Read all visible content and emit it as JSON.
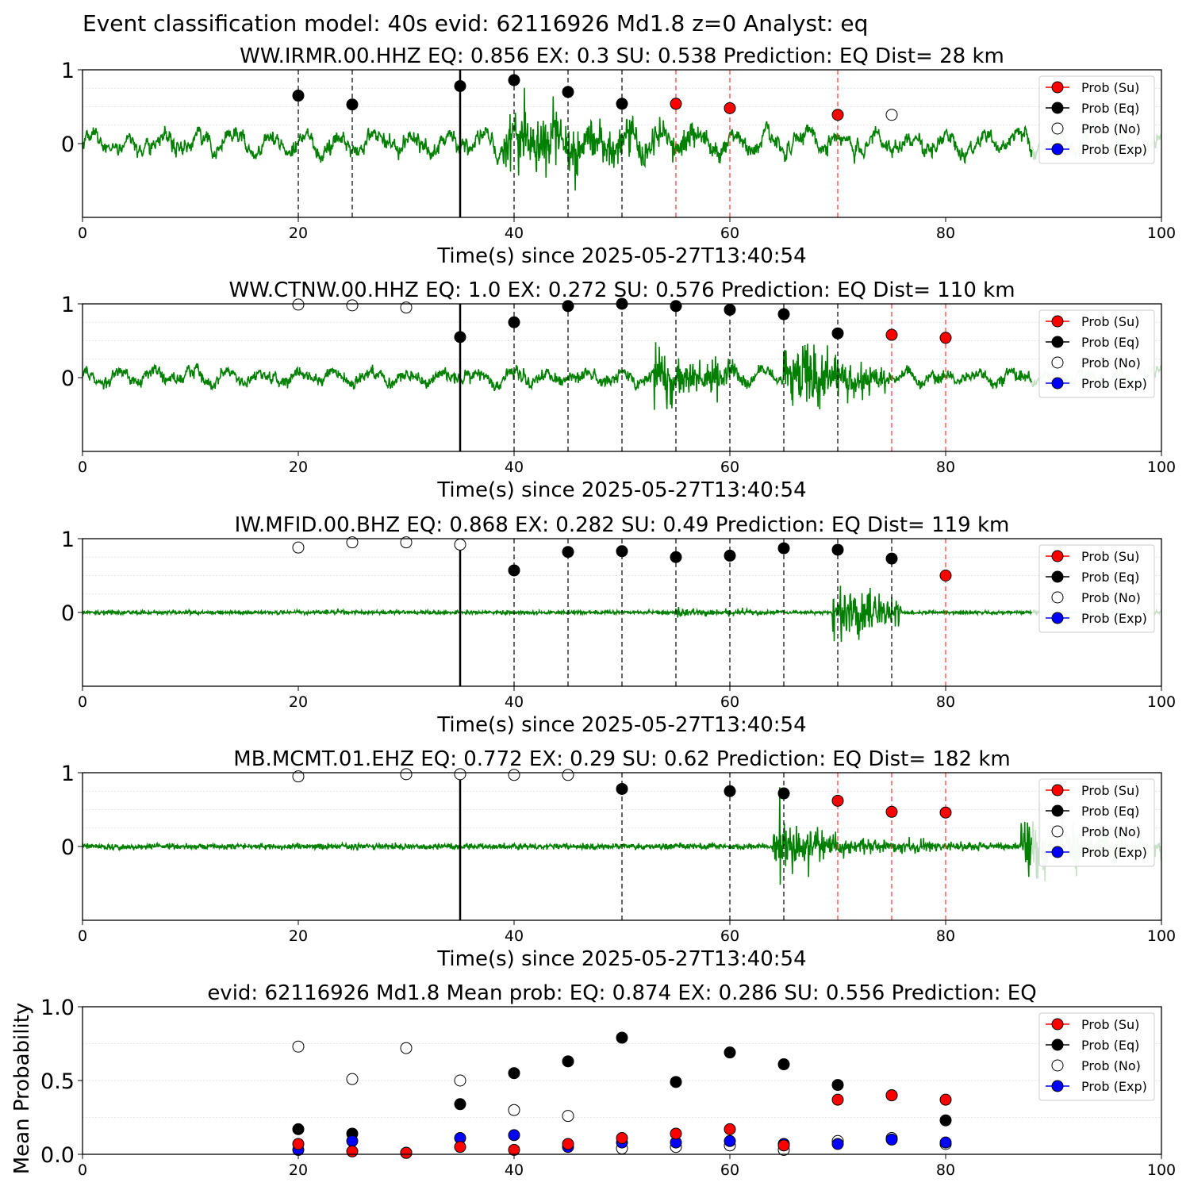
{
  "figure_title": "Event classification model: 40s evid: 62116926 Md1.8 z=0 Analyst: eq",
  "legend_labels": [
    "Prob (Su)",
    "Prob (Eq)",
    "Prob (No)",
    "Prob (Exp)"
  ],
  "colors": {
    "su": "#ff0000",
    "eq": "#000000",
    "no": "#ffffff",
    "exp": "#0000ff",
    "waveform": "#008000",
    "waveform_faded": "#c8e0c8",
    "marker_eq": "#000000",
    "marker_su": "#ff3333",
    "marker_no": "#555555"
  },
  "chart_data": [
    {
      "type": "line",
      "title": "WW.IRMR.00.HHZ   EQ: 0.856  EX: 0.3  SU: 0.538   Prediction: EQ    Dist= 28 km",
      "xlabel": "Time(s) since 2025-05-27T13:40:54",
      "ylabel": "",
      "xlim": [
        0,
        100
      ],
      "ylim": [
        -1,
        1
      ],
      "xticks": [
        "0",
        "20",
        "40",
        "60",
        "80",
        "100"
      ],
      "yticks": [
        "1",
        "0"
      ],
      "grid_y": [
        0.25,
        0.5,
        0.75
      ],
      "origin_time_line": 35,
      "window_markers": [
        {
          "x": 20,
          "kind": "eq"
        },
        {
          "x": 25,
          "kind": "eq"
        },
        {
          "x": 40,
          "kind": "eq"
        },
        {
          "x": 45,
          "kind": "eq"
        },
        {
          "x": 50,
          "kind": "eq"
        },
        {
          "x": 55,
          "kind": "su"
        },
        {
          "x": 60,
          "kind": "su"
        },
        {
          "x": 70,
          "kind": "su"
        }
      ],
      "points": [
        {
          "x": 20,
          "y": 0.65,
          "cls": "eq"
        },
        {
          "x": 25,
          "y": 0.53,
          "cls": "eq"
        },
        {
          "x": 35,
          "y": 0.78,
          "cls": "eq"
        },
        {
          "x": 40,
          "y": 0.86,
          "cls": "eq"
        },
        {
          "x": 45,
          "y": 0.7,
          "cls": "eq"
        },
        {
          "x": 50,
          "y": 0.54,
          "cls": "eq"
        },
        {
          "x": 55,
          "y": 0.54,
          "cls": "su"
        },
        {
          "x": 60,
          "y": 0.48,
          "cls": "su"
        },
        {
          "x": 70,
          "y": 0.39,
          "cls": "su"
        },
        {
          "x": 75,
          "y": 0.39,
          "cls": "no"
        }
      ],
      "waveform": {
        "noise": 0.13,
        "low_freq": 0.9,
        "bursts": [
          {
            "start": 39,
            "end": 55,
            "amp": 0.95
          },
          {
            "start": 55,
            "end": 68,
            "amp": 0.3
          }
        ],
        "fade_from": 88
      }
    },
    {
      "type": "line",
      "title": "WW.CTNW.00.HHZ   EQ: 1.0  EX: 0.272  SU: 0.576   Prediction: EQ    Dist= 110 km",
      "xlabel": "Time(s) since 2025-05-27T13:40:54",
      "ylabel": "",
      "xlim": [
        0,
        100
      ],
      "ylim": [
        -1,
        1
      ],
      "xticks": [
        "0",
        "20",
        "40",
        "60",
        "80",
        "100"
      ],
      "yticks": [
        "1",
        "0"
      ],
      "grid_y": [
        0.25,
        0.5,
        0.75
      ],
      "origin_time_line": 35,
      "window_markers": [
        {
          "x": 40,
          "kind": "eq"
        },
        {
          "x": 45,
          "kind": "eq"
        },
        {
          "x": 50,
          "kind": "eq"
        },
        {
          "x": 55,
          "kind": "eq"
        },
        {
          "x": 60,
          "kind": "eq"
        },
        {
          "x": 65,
          "kind": "eq"
        },
        {
          "x": 70,
          "kind": "eq"
        },
        {
          "x": 75,
          "kind": "su"
        },
        {
          "x": 80,
          "kind": "su"
        }
      ],
      "points": [
        {
          "x": 20,
          "y": 0.99,
          "cls": "no"
        },
        {
          "x": 25,
          "y": 0.98,
          "cls": "no"
        },
        {
          "x": 30,
          "y": 0.95,
          "cls": "no"
        },
        {
          "x": 35,
          "y": 0.55,
          "cls": "eq"
        },
        {
          "x": 40,
          "y": 0.75,
          "cls": "eq"
        },
        {
          "x": 45,
          "y": 0.97,
          "cls": "eq"
        },
        {
          "x": 50,
          "y": 1.0,
          "cls": "eq"
        },
        {
          "x": 55,
          "y": 0.97,
          "cls": "eq"
        },
        {
          "x": 60,
          "y": 0.92,
          "cls": "eq"
        },
        {
          "x": 65,
          "y": 0.86,
          "cls": "eq"
        },
        {
          "x": 70,
          "y": 0.6,
          "cls": "eq"
        },
        {
          "x": 75,
          "y": 0.58,
          "cls": "su"
        },
        {
          "x": 80,
          "y": 0.54,
          "cls": "su"
        }
      ],
      "waveform": {
        "noise": 0.13,
        "low_freq": 0.5,
        "bursts": [
          {
            "start": 53,
            "end": 62,
            "amp": 0.7
          },
          {
            "start": 65,
            "end": 75,
            "amp": 1.0
          }
        ],
        "fade_from": 88
      }
    },
    {
      "type": "line",
      "title": "IW.MFID.00.BHZ   EQ: 0.868  EX: 0.282  SU: 0.49   Prediction: EQ    Dist= 119 km",
      "xlabel": "Time(s) since 2025-05-27T13:40:54",
      "ylabel": "",
      "xlim": [
        0,
        100
      ],
      "ylim": [
        -1,
        1
      ],
      "xticks": [
        "0",
        "20",
        "40",
        "60",
        "80",
        "100"
      ],
      "yticks": [
        "1",
        "0"
      ],
      "grid_y": [
        0.25,
        0.5,
        0.75
      ],
      "origin_time_line": 35,
      "window_markers": [
        {
          "x": 40,
          "kind": "eq"
        },
        {
          "x": 45,
          "kind": "eq"
        },
        {
          "x": 50,
          "kind": "eq"
        },
        {
          "x": 55,
          "kind": "eq"
        },
        {
          "x": 60,
          "kind": "eq"
        },
        {
          "x": 65,
          "kind": "eq"
        },
        {
          "x": 70,
          "kind": "eq"
        },
        {
          "x": 75,
          "kind": "eq"
        },
        {
          "x": 80,
          "kind": "su"
        }
      ],
      "points": [
        {
          "x": 20,
          "y": 0.88,
          "cls": "no"
        },
        {
          "x": 25,
          "y": 0.95,
          "cls": "no"
        },
        {
          "x": 30,
          "y": 0.95,
          "cls": "no"
        },
        {
          "x": 35,
          "y": 0.92,
          "cls": "no"
        },
        {
          "x": 40,
          "y": 0.57,
          "cls": "eq"
        },
        {
          "x": 45,
          "y": 0.82,
          "cls": "eq"
        },
        {
          "x": 50,
          "y": 0.83,
          "cls": "eq"
        },
        {
          "x": 55,
          "y": 0.75,
          "cls": "eq"
        },
        {
          "x": 60,
          "y": 0.77,
          "cls": "eq"
        },
        {
          "x": 65,
          "y": 0.87,
          "cls": "eq"
        },
        {
          "x": 70,
          "y": 0.85,
          "cls": "eq"
        },
        {
          "x": 75,
          "y": 0.73,
          "cls": "eq"
        },
        {
          "x": 80,
          "y": 0.5,
          "cls": "su"
        }
      ],
      "waveform": {
        "noise": 0.05,
        "low_freq": 0.0,
        "bursts": [
          {
            "start": 55,
            "end": 68,
            "amp": 0.12
          },
          {
            "start": 69.5,
            "end": 76,
            "amp": 0.9
          }
        ],
        "fade_from": 88
      }
    },
    {
      "type": "line",
      "title": "MB.MCMT.01.EHZ   EQ: 0.772  EX: 0.29  SU: 0.62   Prediction: EQ    Dist= 182 km",
      "xlabel": "Time(s) since 2025-05-27T13:40:54",
      "ylabel": "",
      "xlim": [
        0,
        100
      ],
      "ylim": [
        -1,
        1
      ],
      "xticks": [
        "0",
        "20",
        "40",
        "60",
        "80",
        "100"
      ],
      "yticks": [
        "1",
        "0"
      ],
      "grid_y": [
        0.25,
        0.5,
        0.75
      ],
      "origin_time_line": 35,
      "window_markers": [
        {
          "x": 50,
          "kind": "eq"
        },
        {
          "x": 60,
          "kind": "eq"
        },
        {
          "x": 65,
          "kind": "eq"
        },
        {
          "x": 70,
          "kind": "su"
        },
        {
          "x": 75,
          "kind": "su"
        },
        {
          "x": 80,
          "kind": "su"
        }
      ],
      "points": [
        {
          "x": 20,
          "y": 0.95,
          "cls": "no"
        },
        {
          "x": 30,
          "y": 0.98,
          "cls": "no"
        },
        {
          "x": 35,
          "y": 0.98,
          "cls": "no"
        },
        {
          "x": 40,
          "y": 0.97,
          "cls": "no"
        },
        {
          "x": 45,
          "y": 0.97,
          "cls": "no"
        },
        {
          "x": 50,
          "y": 0.78,
          "cls": "eq"
        },
        {
          "x": 60,
          "y": 0.75,
          "cls": "eq"
        },
        {
          "x": 65,
          "y": 0.72,
          "cls": "eq"
        },
        {
          "x": 70,
          "y": 0.62,
          "cls": "su"
        },
        {
          "x": 75,
          "y": 0.47,
          "cls": "su"
        },
        {
          "x": 80,
          "y": 0.46,
          "cls": "su"
        }
      ],
      "waveform": {
        "noise": 0.08,
        "low_freq": 0.0,
        "bursts": [
          {
            "start": 64,
            "end": 70,
            "amp": 0.95
          },
          {
            "start": 70,
            "end": 86,
            "amp": 0.25
          },
          {
            "start": 87,
            "end": 100,
            "amp": 0.8
          }
        ],
        "fade_from": 88
      }
    },
    {
      "type": "scatter",
      "title": "evid: 62116926  Md1.8   Mean prob:   EQ: 0.874  EX: 0.286  SU: 0.556   Prediction: EQ",
      "xlabel": "",
      "ylabel": "Mean Probability",
      "xlim": [
        0,
        100
      ],
      "ylim": [
        0,
        1
      ],
      "xticks": [
        "0",
        "20",
        "40",
        "60",
        "80",
        "100"
      ],
      "yticks": [
        "1.0",
        "0.5",
        "0.0"
      ],
      "grid_y": [
        0.25,
        0.5,
        0.75
      ],
      "x": [
        20,
        25,
        30,
        35,
        40,
        45,
        50,
        55,
        60,
        65,
        70,
        75,
        80
      ],
      "series": [
        {
          "name": "Prob (Eq)",
          "cls": "eq",
          "values": [
            0.17,
            0.14,
            0.01,
            0.34,
            0.55,
            0.63,
            0.79,
            0.49,
            0.69,
            0.61,
            0.47,
            0.4,
            0.23
          ]
        },
        {
          "name": "Prob (No)",
          "cls": "no",
          "values": [
            0.73,
            0.51,
            0.72,
            0.5,
            0.3,
            0.26,
            0.04,
            0.05,
            0.06,
            0.03,
            0.09,
            0.11,
            0.07
          ]
        },
        {
          "name": "Prob (Exp)",
          "cls": "exp",
          "values": [
            0.03,
            0.09,
            0.01,
            0.11,
            0.13,
            0.05,
            0.08,
            0.08,
            0.09,
            0.07,
            0.07,
            0.1,
            0.08
          ]
        },
        {
          "name": "Prob (Su)",
          "cls": "su",
          "values": [
            0.07,
            0.02,
            0.01,
            0.05,
            0.03,
            0.07,
            0.11,
            0.14,
            0.17,
            0.06,
            0.37,
            0.4,
            0.37
          ]
        }
      ]
    }
  ]
}
